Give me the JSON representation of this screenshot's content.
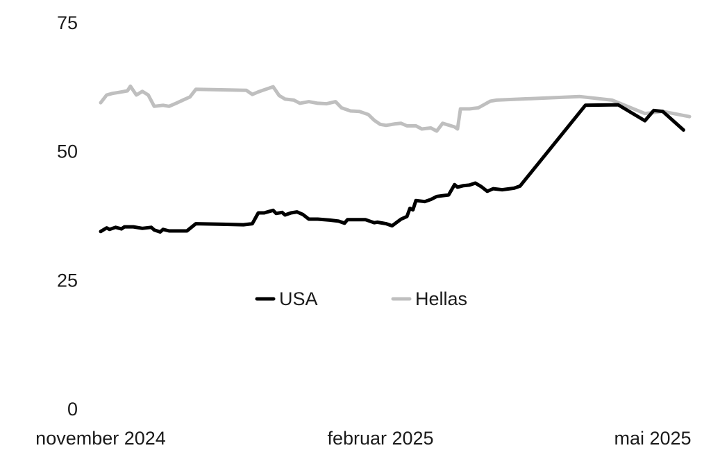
{
  "chart_data": {
    "type": "line",
    "title": "",
    "xlabel": "",
    "ylabel": "",
    "ylim": [
      0,
      75
    ],
    "yticks": [
      0,
      25,
      50,
      75
    ],
    "xticks": [
      {
        "date": "2024-11-01",
        "label": "november 2024"
      },
      {
        "date": "2025-02-01",
        "label": "februar 2025"
      },
      {
        "date": "2025-05-01",
        "label": "mai 2025"
      }
    ],
    "grid": false,
    "legend": "center",
    "series": [
      {
        "name": "USA",
        "color": "#000000",
        "points": [
          [
            "2024-11-01",
            34.5
          ],
          [
            "2024-11-03",
            35.2
          ],
          [
            "2024-11-04",
            34.9
          ],
          [
            "2024-11-06",
            35.3
          ],
          [
            "2024-11-08",
            35.0
          ],
          [
            "2024-11-09",
            35.4
          ],
          [
            "2024-11-12",
            35.4
          ],
          [
            "2024-11-15",
            35.1
          ],
          [
            "2024-11-18",
            35.3
          ],
          [
            "2024-11-19",
            34.8
          ],
          [
            "2024-11-21",
            34.4
          ],
          [
            "2024-11-22",
            34.9
          ],
          [
            "2024-11-24",
            34.6
          ],
          [
            "2024-11-28",
            34.6
          ],
          [
            "2024-11-30",
            34.6
          ],
          [
            "2024-12-03",
            36.0
          ],
          [
            "2024-12-12",
            35.9
          ],
          [
            "2024-12-19",
            35.8
          ],
          [
            "2024-12-22",
            36.0
          ],
          [
            "2024-12-24",
            38.1
          ],
          [
            "2024-12-26",
            38.1
          ],
          [
            "2024-12-29",
            38.6
          ],
          [
            "2024-12-30",
            38.0
          ],
          [
            "2025-01-01",
            38.2
          ],
          [
            "2025-01-02",
            37.7
          ],
          [
            "2025-01-04",
            38.1
          ],
          [
            "2025-01-06",
            38.3
          ],
          [
            "2025-01-08",
            37.8
          ],
          [
            "2025-01-10",
            36.9
          ],
          [
            "2025-01-13",
            36.9
          ],
          [
            "2025-01-17",
            36.7
          ],
          [
            "2025-01-20",
            36.5
          ],
          [
            "2025-01-22",
            36.1
          ],
          [
            "2025-01-23",
            36.8
          ],
          [
            "2025-01-26",
            36.8
          ],
          [
            "2025-01-29",
            36.8
          ],
          [
            "2025-02-01",
            36.2
          ],
          [
            "2025-02-02",
            36.3
          ],
          [
            "2025-02-05",
            36.0
          ],
          [
            "2025-02-07",
            35.6
          ],
          [
            "2025-02-10",
            36.9
          ],
          [
            "2025-02-12",
            37.4
          ],
          [
            "2025-02-13",
            39.0
          ],
          [
            "2025-02-14",
            38.7
          ],
          [
            "2025-02-15",
            40.5
          ],
          [
            "2025-02-18",
            40.3
          ],
          [
            "2025-02-20",
            40.7
          ],
          [
            "2025-02-22",
            41.3
          ],
          [
            "2025-02-26",
            41.6
          ],
          [
            "2025-02-28",
            43.6
          ],
          [
            "2025-03-01",
            43.1
          ],
          [
            "2025-03-03",
            43.4
          ],
          [
            "2025-03-05",
            43.5
          ],
          [
            "2025-03-07",
            43.9
          ],
          [
            "2025-03-09",
            43.2
          ],
          [
            "2025-03-11",
            42.3
          ],
          [
            "2025-03-13",
            42.8
          ],
          [
            "2025-03-16",
            42.6
          ],
          [
            "2025-03-20",
            42.9
          ],
          [
            "2025-03-22",
            43.3
          ],
          [
            "2025-04-13",
            59.0
          ],
          [
            "2025-04-24",
            59.1
          ],
          [
            "2025-05-03",
            56.0
          ],
          [
            "2025-05-06",
            58.0
          ],
          [
            "2025-05-09",
            57.8
          ],
          [
            "2025-05-16",
            54.2
          ]
        ]
      },
      {
        "name": "Hellas",
        "color": "#bfbfbf",
        "points": [
          [
            "2024-11-01",
            59.5
          ],
          [
            "2024-11-03",
            61.0
          ],
          [
            "2024-11-05",
            61.3
          ],
          [
            "2024-11-07",
            61.5
          ],
          [
            "2024-11-10",
            61.8
          ],
          [
            "2024-11-11",
            62.7
          ],
          [
            "2024-11-13",
            61.0
          ],
          [
            "2024-11-15",
            61.7
          ],
          [
            "2024-11-17",
            61.0
          ],
          [
            "2024-11-19",
            58.8
          ],
          [
            "2024-11-22",
            59.0
          ],
          [
            "2024-11-24",
            58.8
          ],
          [
            "2024-11-26",
            59.3
          ],
          [
            "2024-11-29",
            60.1
          ],
          [
            "2024-12-01",
            60.6
          ],
          [
            "2024-12-03",
            62.1
          ],
          [
            "2024-12-20",
            61.9
          ],
          [
            "2024-12-22",
            61.1
          ],
          [
            "2024-12-24",
            61.6
          ],
          [
            "2024-12-29",
            62.6
          ],
          [
            "2024-12-31",
            60.9
          ],
          [
            "2025-01-02",
            60.2
          ],
          [
            "2025-01-05",
            60.0
          ],
          [
            "2025-01-07",
            59.4
          ],
          [
            "2025-01-10",
            59.7
          ],
          [
            "2025-01-13",
            59.4
          ],
          [
            "2025-01-16",
            59.3
          ],
          [
            "2025-01-19",
            59.7
          ],
          [
            "2025-01-21",
            58.5
          ],
          [
            "2025-01-24",
            57.9
          ],
          [
            "2025-01-27",
            57.8
          ],
          [
            "2025-01-30",
            57.2
          ],
          [
            "2025-02-01",
            56.1
          ],
          [
            "2025-02-03",
            55.3
          ],
          [
            "2025-02-05",
            55.1
          ],
          [
            "2025-02-08",
            55.4
          ],
          [
            "2025-02-10",
            55.5
          ],
          [
            "2025-02-12",
            55.0
          ],
          [
            "2025-02-15",
            55.0
          ],
          [
            "2025-02-17",
            54.4
          ],
          [
            "2025-02-20",
            54.6
          ],
          [
            "2025-02-22",
            54.0
          ],
          [
            "2025-02-24",
            55.5
          ],
          [
            "2025-02-28",
            54.8
          ],
          [
            "2025-03-01",
            54.4
          ],
          [
            "2025-03-02",
            58.3
          ],
          [
            "2025-03-05",
            58.3
          ],
          [
            "2025-03-08",
            58.5
          ],
          [
            "2025-03-12",
            59.8
          ],
          [
            "2025-03-14",
            60.0
          ],
          [
            "2025-04-11",
            60.7
          ],
          [
            "2025-04-22",
            60.0
          ],
          [
            "2025-05-03",
            57.4
          ],
          [
            "2025-05-09",
            57.8
          ],
          [
            "2025-05-18",
            56.8
          ]
        ]
      }
    ]
  }
}
